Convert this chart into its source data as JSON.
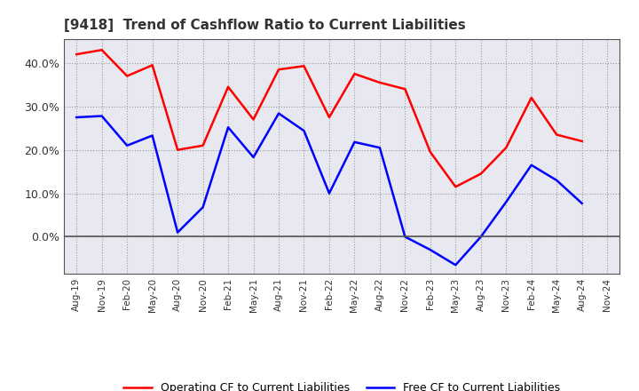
{
  "title": "[9418]  Trend of Cashflow Ratio to Current Liabilities",
  "x_labels": [
    "Aug-19",
    "Nov-19",
    "Feb-20",
    "May-20",
    "Aug-20",
    "Nov-20",
    "Feb-21",
    "May-21",
    "Aug-21",
    "Nov-21",
    "Feb-22",
    "May-22",
    "Aug-22",
    "Nov-22",
    "Feb-23",
    "May-23",
    "Aug-23",
    "Nov-23",
    "Feb-24",
    "May-24",
    "Aug-24",
    "Nov-24"
  ],
  "operating_cf": [
    0.42,
    0.43,
    0.37,
    0.395,
    0.2,
    0.21,
    0.345,
    0.27,
    0.385,
    0.393,
    0.275,
    0.375,
    0.355,
    0.34,
    0.195,
    0.115,
    0.145,
    0.205,
    0.32,
    0.235,
    0.22,
    null
  ],
  "free_cf": [
    0.275,
    0.278,
    0.21,
    0.233,
    0.01,
    0.068,
    0.252,
    0.183,
    0.284,
    0.244,
    0.1,
    0.218,
    0.205,
    0.0,
    -0.03,
    -0.065,
    0.0,
    0.08,
    0.165,
    0.13,
    0.077,
    null
  ],
  "ylim": [
    -0.085,
    0.455
  ],
  "yticks": [
    0.0,
    0.1,
    0.2,
    0.3,
    0.4
  ],
  "operating_color": "#FF0000",
  "free_color": "#0000FF",
  "background_color": "#FFFFFF",
  "plot_bg_color": "#E8E8F0",
  "grid_color": "#999999",
  "legend_operating": "Operating CF to Current Liabilities",
  "legend_free": "Free CF to Current Liabilities",
  "title_color": "#333333"
}
